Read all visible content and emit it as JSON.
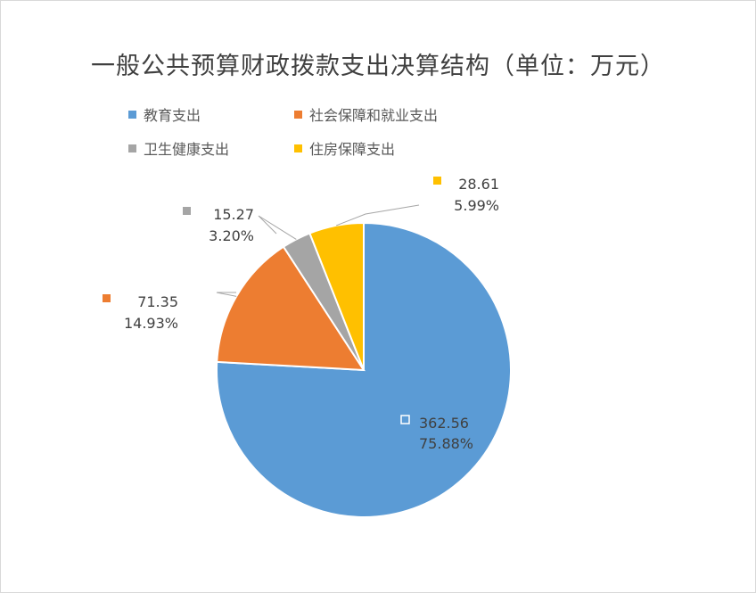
{
  "chart_data": {
    "type": "pie",
    "title": "一般公共预算财政拨款支出决算结构（单位：万元）",
    "series": [
      {
        "name": "教育支出",
        "value": 362.56,
        "percent_label": "75.88%",
        "value_label": "362.56",
        "color": "#5b9bd5"
      },
      {
        "name": "社会保障和就业支出",
        "value": 71.35,
        "percent_label": "14.93%",
        "value_label": "71.35",
        "color": "#ed7d31"
      },
      {
        "name": "卫生健康支出",
        "value": 15.27,
        "percent_label": "3.20%",
        "value_label": "15.27",
        "color": "#a5a5a5"
      },
      {
        "name": "住房保障支出",
        "value": 28.61,
        "percent_label": "5.99%",
        "value_label": "28.61",
        "color": "#ffc000"
      }
    ],
    "legend_position": "top-left"
  }
}
